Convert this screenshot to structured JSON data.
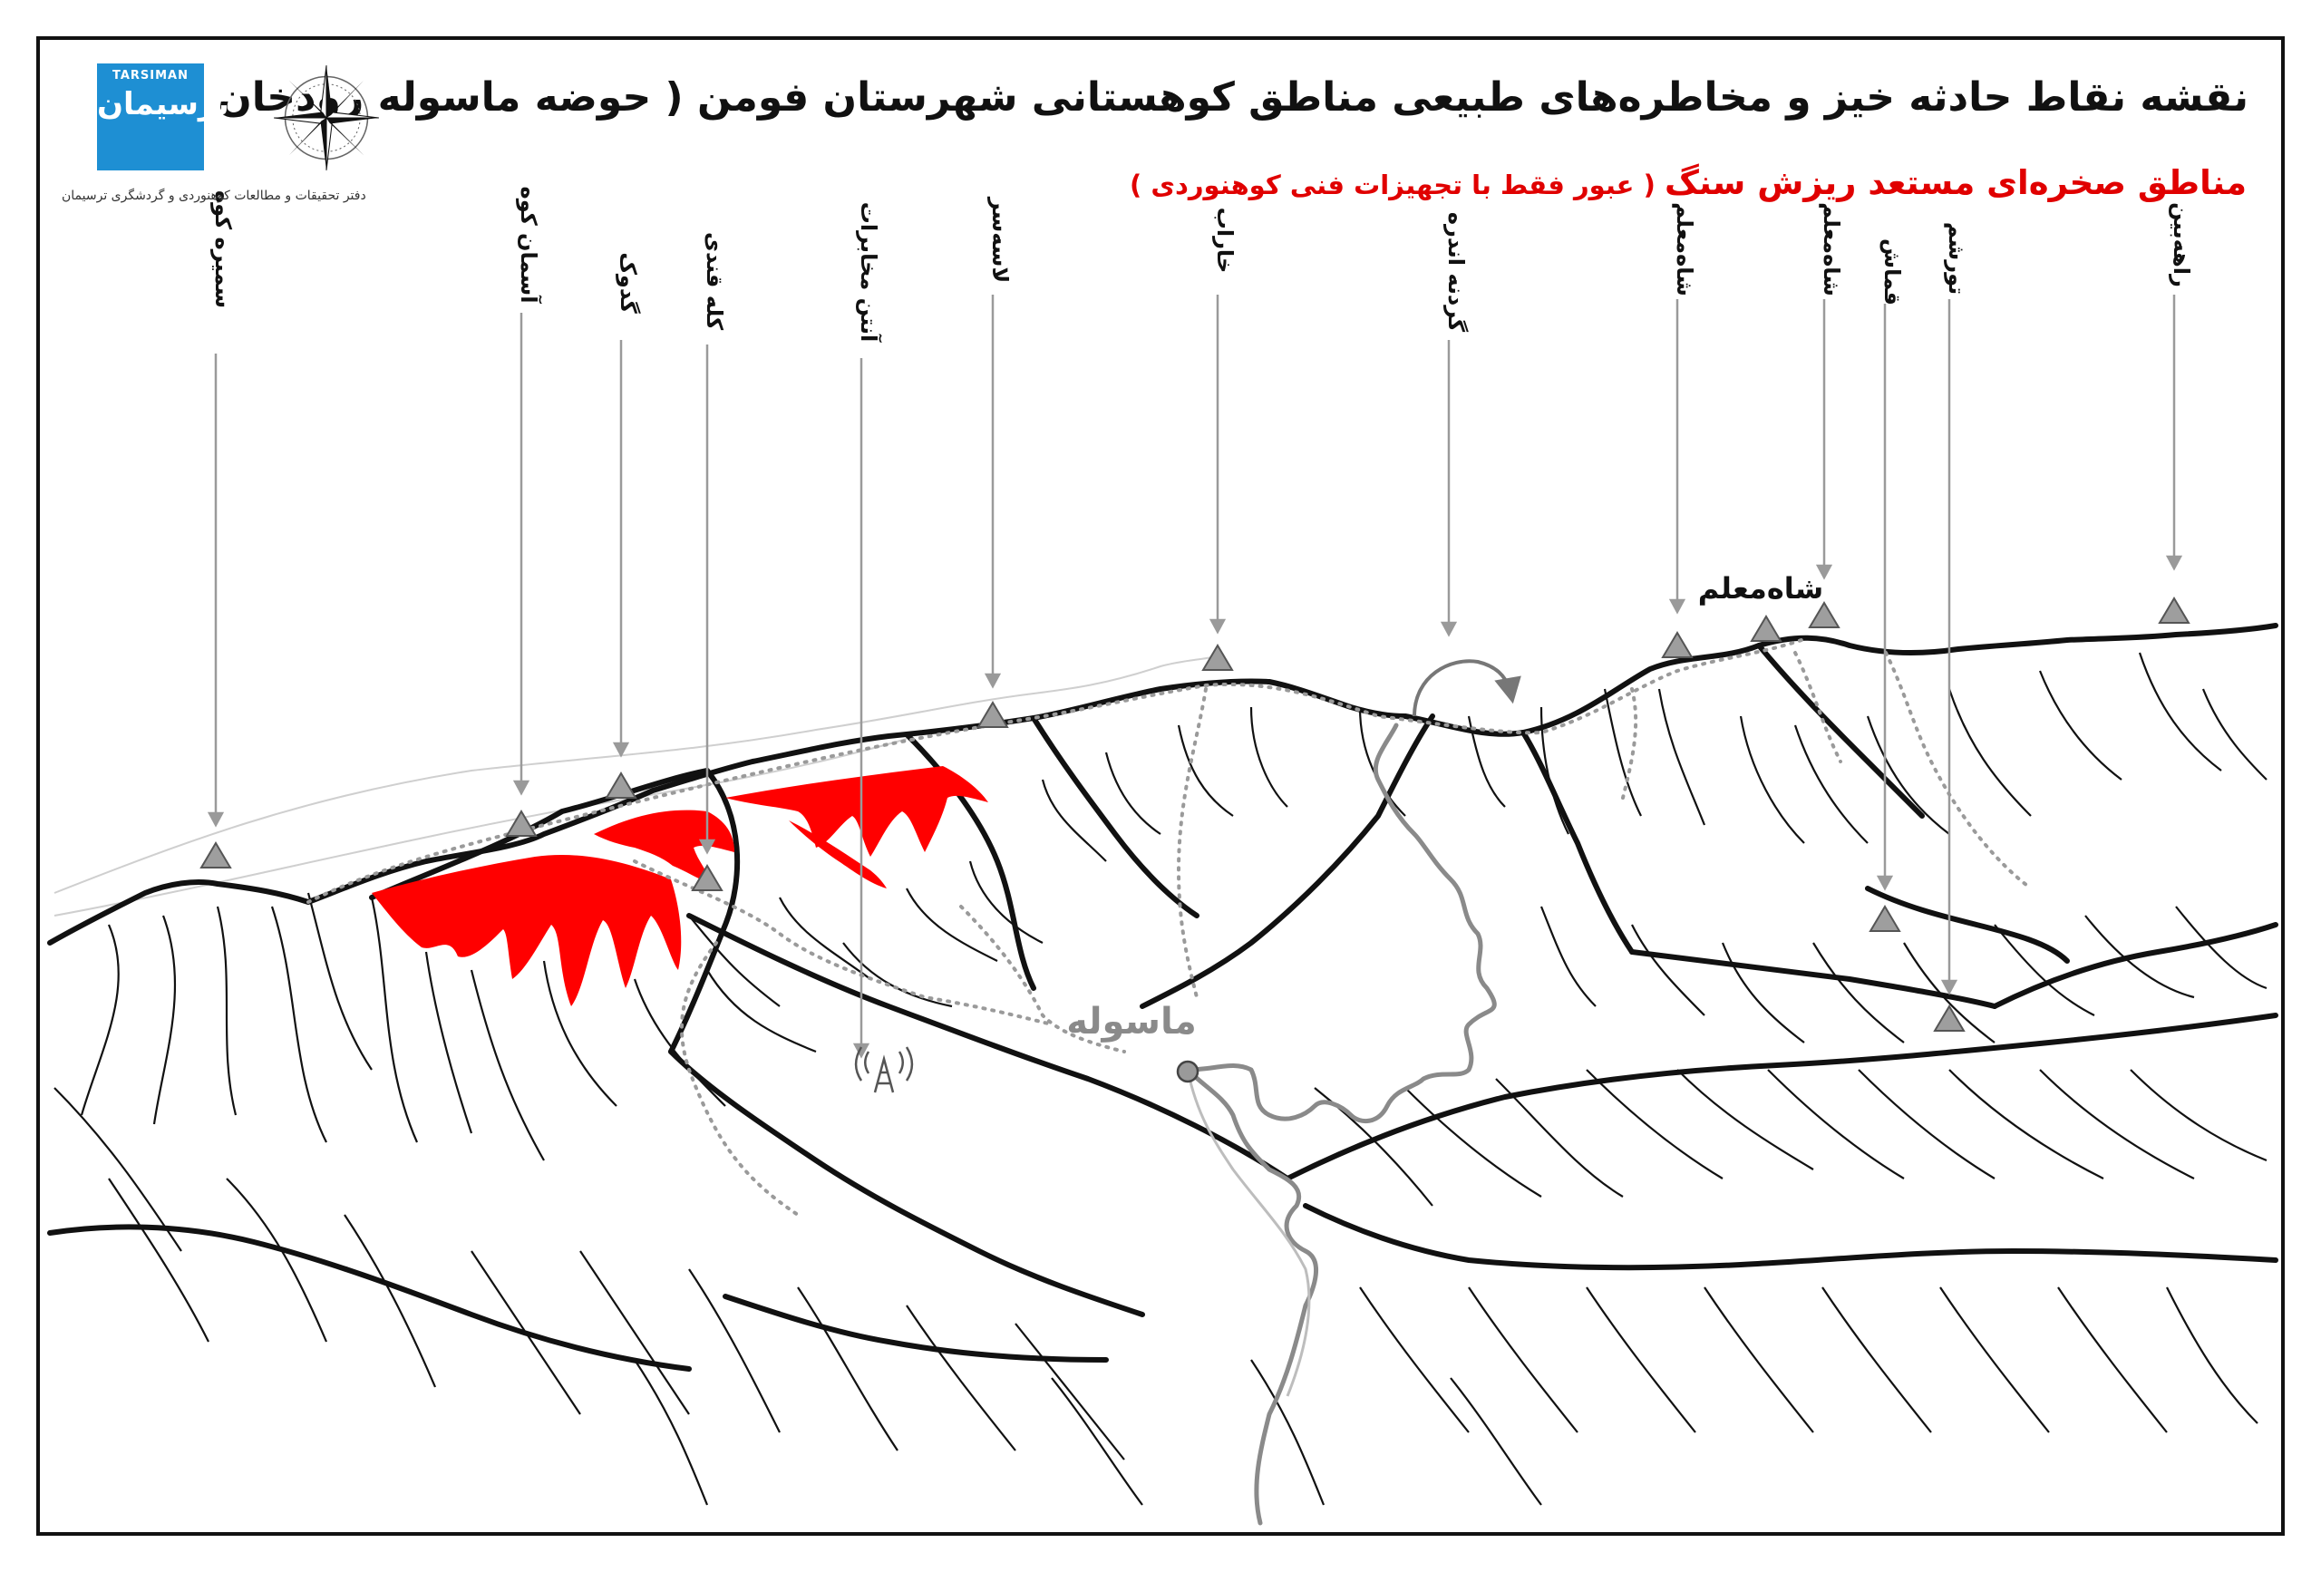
{
  "title": "نقشه نقاط حادثه خیز و مخاطره‌های طبیعی مناطق کوهستانی شهرستان فومن ( حوضه ماسوله رودخان )",
  "subtitle": {
    "main": "مناطق صخره‌ای مستعد ریزش سنگ",
    "note": " ( عبور فقط با تجهیزات فنی کوهنوردی )"
  },
  "logo": {
    "brand": "TARSIMAN",
    "name": "ترسیمان",
    "caption": "دفتر تحقیقات و مطالعات کوهنوردی و گردشگری ترسیمان"
  },
  "town_label": "ماسوله",
  "summit_label": "شاه‌معلم",
  "peaks": [
    "سمیره کوه",
    "آسمان کوه",
    "گدوک",
    "کله قندی",
    "آنتن مخابرات",
    "لاسه‌سر",
    "خاراب",
    "گردنه اندره",
    "شاه‌معلم",
    "شاه‌معلم",
    "قماش",
    "تورشم",
    "راهه‌بین"
  ],
  "colors": {
    "hazard": "#ff0000",
    "ridge": "#111111",
    "trail": "#9a9a9a",
    "road": "#8a8a8a",
    "logo": "#1e8fd3"
  },
  "icons": [
    "compass-rose-icon",
    "peak-triangle-icon",
    "antenna-tower-icon",
    "town-dot-icon",
    "turn-arrow-icon"
  ]
}
